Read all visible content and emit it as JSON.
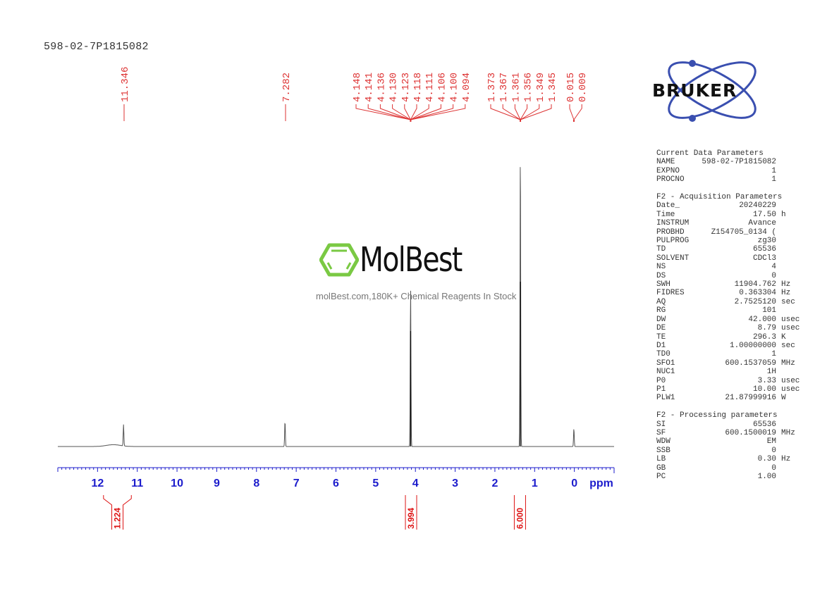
{
  "sample_title": "598-02-7P1815082",
  "brand": {
    "name": "BRUKER",
    "color": "#3a4fb0"
  },
  "watermark": {
    "name": "MolBest",
    "tagline": "molBest.com,180K+ Chemical Reagents In Stock",
    "hex_color": "#7ac943"
  },
  "chart_data": {
    "type": "line",
    "title": "598-02-7P1815082",
    "xlabel": "ppm",
    "ylabel": "",
    "xlim": [
      13.0,
      -1.0
    ],
    "x_reversed": true,
    "grid": false,
    "x_ticks": [
      12,
      11,
      10,
      9,
      8,
      7,
      6,
      5,
      4,
      3,
      2,
      1,
      0
    ],
    "x_tick_labels": [
      "12",
      "11",
      "10",
      "9",
      "8",
      "7",
      "6",
      "5",
      "4",
      "3",
      "2",
      "1",
      "0"
    ],
    "axis_unit_label": "ppm",
    "peaks": [
      {
        "ppm": 11.346,
        "relative_height": 0.07
      },
      {
        "ppm": 7.282,
        "relative_height": 0.085
      },
      {
        "ppm": 4.121,
        "relative_height": 0.53
      },
      {
        "ppm": 1.359,
        "relative_height": 1.0
      },
      {
        "ppm": 0.012,
        "relative_height": 0.06
      }
    ],
    "peak_labels": [
      {
        "group": "11.346",
        "values": [
          "11.346"
        ],
        "center_ppm": 11.346
      },
      {
        "group": "7.282",
        "values": [
          "7.282"
        ],
        "center_ppm": 7.282
      },
      {
        "group": "4.1",
        "values": [
          "4.148",
          "4.141",
          "4.136",
          "4.130",
          "4.123",
          "4.118",
          "4.111",
          "4.106",
          "4.100",
          "4.094"
        ],
        "center_ppm": 4.121
      },
      {
        "group": "1.36",
        "values": [
          "1.373",
          "1.367",
          "1.361",
          "1.356",
          "1.349",
          "1.345"
        ],
        "center_ppm": 1.359
      },
      {
        "group": "0.01",
        "values": [
          "0.015",
          "0.009"
        ],
        "center_ppm": 0.012
      }
    ],
    "integrals": [
      {
        "from_ppm": 11.85,
        "to_ppm": 11.15,
        "value": "1.224"
      },
      {
        "from_ppm": 4.25,
        "to_ppm": 3.97,
        "value": "3.994"
      },
      {
        "from_ppm": 1.52,
        "to_ppm": 1.22,
        "value": "6.000"
      }
    ]
  },
  "parameters": {
    "current": {
      "heading": "Current Data Parameters",
      "rows": [
        {
          "key": "NAME",
          "value": "598-02-7P1815082",
          "unit": ""
        },
        {
          "key": "EXPNO",
          "value": "1",
          "unit": ""
        },
        {
          "key": "PROCNO",
          "value": "1",
          "unit": ""
        }
      ]
    },
    "acquisition": {
      "heading": "F2 - Acquisition Parameters",
      "rows": [
        {
          "key": "Date_",
          "value": "20240229",
          "unit": ""
        },
        {
          "key": "Time",
          "value": "17.50",
          "unit": "h"
        },
        {
          "key": "INSTRUM",
          "value": "Avance",
          "unit": ""
        },
        {
          "key": "PROBHD",
          "value": "Z154705_0134 (",
          "unit": ""
        },
        {
          "key": "PULPROG",
          "value": "zg30",
          "unit": ""
        },
        {
          "key": "TD",
          "value": "65536",
          "unit": ""
        },
        {
          "key": "SOLVENT",
          "value": "CDCl3",
          "unit": ""
        },
        {
          "key": "NS",
          "value": "4",
          "unit": ""
        },
        {
          "key": "DS",
          "value": "0",
          "unit": ""
        },
        {
          "key": "SWH",
          "value": "11904.762",
          "unit": "Hz"
        },
        {
          "key": "FIDRES",
          "value": "0.363304",
          "unit": "Hz"
        },
        {
          "key": "AQ",
          "value": "2.7525120",
          "unit": "sec"
        },
        {
          "key": "RG",
          "value": "101",
          "unit": ""
        },
        {
          "key": "DW",
          "value": "42.000",
          "unit": "usec"
        },
        {
          "key": "DE",
          "value": "8.79",
          "unit": "usec"
        },
        {
          "key": "TE",
          "value": "296.3",
          "unit": "K"
        },
        {
          "key": "D1",
          "value": "1.00000000",
          "unit": "sec"
        },
        {
          "key": "TD0",
          "value": "1",
          "unit": ""
        },
        {
          "key": "SFO1",
          "value": "600.1537059",
          "unit": "MHz"
        },
        {
          "key": "NUC1",
          "value": "1H",
          "unit": ""
        },
        {
          "key": "P0",
          "value": "3.33",
          "unit": "usec"
        },
        {
          "key": "P1",
          "value": "10.00",
          "unit": "usec"
        },
        {
          "key": "PLW1",
          "value": "21.87999916",
          "unit": "W"
        }
      ]
    },
    "processing": {
      "heading": "F2 - Processing parameters",
      "rows": [
        {
          "key": "SI",
          "value": "65536",
          "unit": ""
        },
        {
          "key": "SF",
          "value": "600.1500019",
          "unit": "MHz"
        },
        {
          "key": "WDW",
          "value": "EM",
          "unit": ""
        },
        {
          "key": "SSB",
          "value": "0",
          "unit": ""
        },
        {
          "key": "LB",
          "value": "0.30",
          "unit": "Hz"
        },
        {
          "key": "GB",
          "value": "0",
          "unit": ""
        },
        {
          "key": "PC",
          "value": "1.00",
          "unit": ""
        }
      ]
    }
  }
}
